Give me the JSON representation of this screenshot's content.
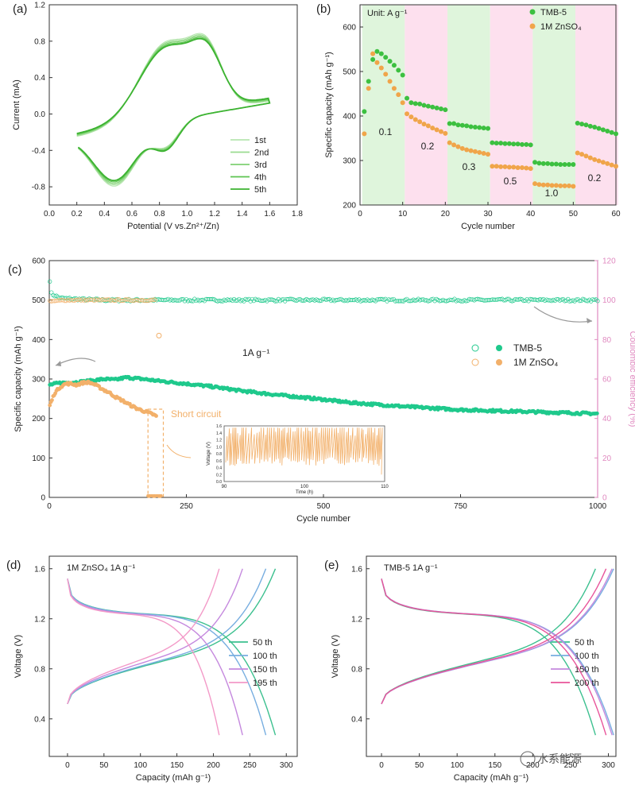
{
  "chart_data": [
    {
      "panel": "(a)",
      "type": "line",
      "xlabel": "Potential (V vs.Zn²⁺/Zn)",
      "ylabel": "Current (mA)",
      "xlim": [
        0.0,
        1.8
      ],
      "ylim": [
        -1.0,
        1.2
      ],
      "xticks": [
        "0.0",
        "0.2",
        "0.4",
        "0.6",
        "0.8",
        "1.0",
        "1.2",
        "1.4",
        "1.6",
        "1.8"
      ],
      "yticks": [
        "-0.8",
        "-0.4",
        "0.0",
        "0.4",
        "0.8",
        "1.2"
      ],
      "legend": [
        "1st",
        "2nd",
        "3rd",
        "4th",
        "5th"
      ],
      "series_colors": [
        "#b7e6b0",
        "#9adb90",
        "#7fd172",
        "#5dc450",
        "#3cb331"
      ],
      "cv_peaks": {
        "anodic": [
          {
            "x": 0.85,
            "y": 0.75
          },
          {
            "x": 1.15,
            "y": 0.93
          }
        ],
        "cathodic": [
          {
            "x": 0.48,
            "y": -0.76
          },
          {
            "x": 0.85,
            "y": -0.56
          }
        ]
      }
    },
    {
      "panel": "(b)",
      "type": "scatter",
      "annotation": "Unit: A g⁻¹",
      "xlabel": "Cycle number",
      "ylabel": "Specific capacity (mAh g⁻¹)",
      "xlim": [
        0,
        60
      ],
      "ylim": [
        200,
        650
      ],
      "xticks": [
        "0",
        "10",
        "20",
        "30",
        "40",
        "50",
        "60"
      ],
      "yticks": [
        "200",
        "300",
        "400",
        "500",
        "600"
      ],
      "rate_labels": [
        "0.1",
        "0.2",
        "0.3",
        "0.5",
        "1.0",
        "0.2"
      ],
      "band_colors": [
        "#dff5dc",
        "#fde0ee"
      ],
      "series": [
        {
          "name": "TMB-5",
          "color": "#3cc040",
          "x": [
            1,
            2,
            3,
            4,
            5,
            6,
            7,
            8,
            9,
            10,
            11,
            12,
            13,
            14,
            15,
            16,
            17,
            18,
            19,
            20,
            21,
            22,
            23,
            24,
            25,
            26,
            27,
            28,
            29,
            30,
            31,
            32,
            33,
            34,
            35,
            36,
            37,
            38,
            39,
            40,
            41,
            42,
            43,
            44,
            45,
            46,
            47,
            48,
            49,
            50,
            51,
            52,
            53,
            54,
            55,
            56,
            57,
            58,
            59,
            60
          ],
          "values": [
            410,
            478,
            527,
            545,
            540,
            532,
            523,
            514,
            503,
            492,
            440,
            430,
            428,
            427,
            424,
            422,
            420,
            418,
            416,
            414,
            383,
            383,
            380,
            379,
            378,
            376,
            375,
            374,
            373,
            372,
            340,
            339,
            339,
            338,
            338,
            337,
            337,
            336,
            336,
            335,
            296,
            294,
            293,
            293,
            292,
            292,
            291,
            291,
            291,
            291,
            384,
            382,
            380,
            377,
            375,
            372,
            369,
            366,
            363,
            360
          ]
        },
        {
          "name": "1M ZnSO₄",
          "color": "#f0a54a",
          "x": [
            1,
            2,
            3,
            4,
            5,
            6,
            7,
            8,
            9,
            10,
            11,
            12,
            13,
            14,
            15,
            16,
            17,
            18,
            19,
            20,
            21,
            22,
            23,
            24,
            25,
            26,
            27,
            28,
            29,
            30,
            31,
            32,
            33,
            34,
            35,
            36,
            37,
            38,
            39,
            40,
            41,
            42,
            43,
            44,
            45,
            46,
            47,
            48,
            49,
            50,
            51,
            52,
            53,
            54,
            55,
            56,
            57,
            58,
            59,
            60
          ],
          "values": [
            360,
            462,
            540,
            520,
            508,
            494,
            478,
            462,
            448,
            430,
            405,
            398,
            392,
            387,
            382,
            378,
            373,
            369,
            365,
            361,
            340,
            335,
            331,
            327,
            324,
            322,
            320,
            318,
            316,
            314,
            287,
            287,
            286,
            286,
            285,
            285,
            284,
            284,
            283,
            282,
            248,
            246,
            245,
            245,
            244,
            244,
            243,
            243,
            243,
            242,
            317,
            314,
            310,
            306,
            302,
            299,
            296,
            293,
            290,
            287
          ]
        }
      ]
    },
    {
      "panel": "(c)",
      "type": "scatter",
      "xlabel": "Cycle number",
      "ylabel": "Specific capacity (mAh g⁻¹)",
      "y2label": "Coulombic efficiency (%)",
      "xlim": [
        0,
        1000
      ],
      "ylim": [
        0,
        600
      ],
      "y2lim": [
        0,
        120
      ],
      "xticks": [
        "0",
        "250",
        "500",
        "750",
        "1000"
      ],
      "yticks": [
        "0",
        "100",
        "200",
        "300",
        "400",
        "500",
        "600"
      ],
      "y2ticks": [
        "0",
        "20",
        "40",
        "60",
        "80",
        "100",
        "120"
      ],
      "annotation": "1A g⁻¹",
      "short_circuit_label": "Short circuit",
      "series": [
        {
          "name": "TMB-5",
          "color": "#1fc98c",
          "capacity": {
            "x": [
              0,
              20,
              50,
              80,
              100,
              120,
              140,
              170,
              200,
              250,
              300,
              350,
              400,
              450,
              500,
              550,
              600,
              650,
              700,
              750,
              800,
              850,
              900,
              950,
              1000
            ],
            "values": [
              285,
              290,
              292,
              296,
              300,
              298,
              304,
              300,
              295,
              288,
              280,
              270,
              262,
              255,
              248,
              240,
              235,
              230,
              226,
              222,
              220,
              218,
              216,
              214,
              212
            ]
          },
          "ce": {
            "x": [
              0,
              2,
              5,
              20,
              50,
              100,
              200,
              400,
              600,
              800,
              1000
            ],
            "values": [
              116,
              104,
              103,
              101,
              100.5,
              100,
              100,
              100,
              100,
              100,
              100
            ]
          }
        },
        {
          "name": "1M ZnSO₄",
          "color": "#f2b06a",
          "capacity": {
            "x": [
              0,
              10,
              20,
              30,
              40,
              50,
              60,
              70,
              80,
              90,
              100,
              110,
              120,
              130,
              140,
              150,
              160,
              170,
              180,
              190,
              195
            ],
            "values": [
              230,
              265,
              280,
              288,
              288,
              285,
              290,
              292,
              288,
              280,
              272,
              265,
              255,
              248,
              240,
              232,
              225,
              220,
              215,
              210,
              205
            ]
          },
          "ce": {
            "x": [
              0,
              5,
              10,
              30,
              60,
              100,
              150,
              180,
              195
            ],
            "values": [
              100,
              99,
              99.5,
              100,
              100,
              100,
              100,
              100,
              100
            ],
            "outlier": {
              "x": 200,
              "value": 82
            }
          }
        }
      ],
      "inset": {
        "xlabel": "Time (h)",
        "ylabel": "Voltage (V)",
        "xlim": [
          90,
          110
        ],
        "ylim": [
          0.0,
          1.6
        ],
        "xticks": [
          "90",
          "100",
          "110"
        ],
        "yticks": [
          "0.0",
          "0.2",
          "0.4",
          "0.6",
          "0.8",
          "1.0",
          "1.2",
          "1.4",
          "1.6"
        ]
      }
    },
    {
      "panel": "(d)",
      "type": "line",
      "annotation": "1M ZnSO₄   1A g⁻¹",
      "xlabel": "Capacity (mAh g⁻¹)",
      "ylabel": "Voltage (V)",
      "xlim": [
        -25,
        315
      ],
      "ylim": [
        0.1,
        1.7
      ],
      "xticks": [
        "0",
        "50",
        "100",
        "150",
        "200",
        "250",
        "300"
      ],
      "yticks": [
        "0.4",
        "0.8",
        "1.2",
        "1.6"
      ],
      "series": [
        {
          "name": "50 th",
          "color": "#3cc08f",
          "capacity": 285
        },
        {
          "name": "100 th",
          "color": "#77aee0",
          "capacity": 272
        },
        {
          "name": "150 th",
          "color": "#c589de",
          "capacity": 240
        },
        {
          "name": "195 th",
          "color": "#f39ac8",
          "capacity": 208
        }
      ]
    },
    {
      "panel": "(e)",
      "type": "line",
      "annotation": "TMB-5   1A g⁻¹",
      "xlabel": "Capacity (mAh g⁻¹)",
      "ylabel": "Voltage (V)",
      "xlim": [
        -20,
        310
      ],
      "ylim": [
        0.1,
        1.7
      ],
      "xticks": [
        "0",
        "50",
        "100",
        "150",
        "200",
        "250",
        "300"
      ],
      "yticks": [
        "0.4",
        "0.8",
        "1.2",
        "1.6"
      ],
      "watermark": "水系能源",
      "series": [
        {
          "name": "50 th",
          "color": "#3cc08f",
          "capacity": 283
        },
        {
          "name": "100 th",
          "color": "#77aee0",
          "capacity": 307
        },
        {
          "name": "150 th",
          "color": "#c589de",
          "capacity": 305
        },
        {
          "name": "200 th",
          "color": "#e8549a",
          "capacity": 297
        }
      ]
    }
  ]
}
